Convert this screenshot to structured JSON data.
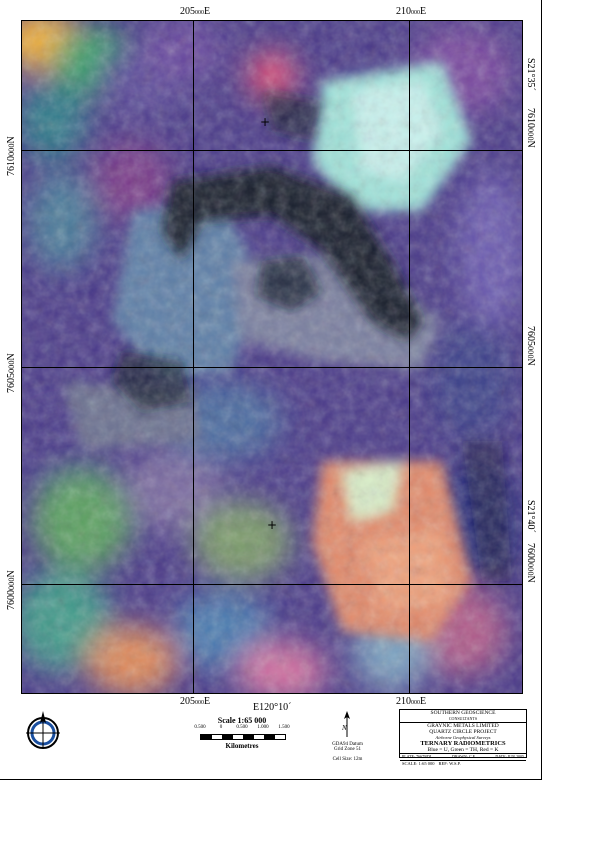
{
  "grid": {
    "easting_top": [
      {
        "main": "205",
        "small": "000",
        "suffix": "E"
      },
      {
        "main": "210",
        "small": "000",
        "suffix": "E"
      }
    ],
    "easting_bottom": [
      {
        "main": "205",
        "small": "000",
        "suffix": "E"
      },
      {
        "main": "210",
        "small": "000",
        "suffix": "E"
      }
    ],
    "northing_left": [
      {
        "main": "7610",
        "small": "000",
        "suffix": "N"
      },
      {
        "main": "7605",
        "small": "000",
        "suffix": "N"
      },
      {
        "main": "7600",
        "small": "000",
        "suffix": "N"
      }
    ],
    "northing_right": [
      {
        "main": "7610",
        "small": "000",
        "suffix": "N"
      },
      {
        "main": "7605",
        "small": "000",
        "suffix": "N"
      },
      {
        "main": "7600",
        "small": "000",
        "suffix": "N"
      }
    ],
    "latitude_labels": [
      "S21°35´",
      "S21°40´"
    ],
    "longitude_label": "E120°10´",
    "graticule_mark": "+"
  },
  "scale": {
    "title": "Scale 1:65 000",
    "ticks": [
      "0.500",
      "0",
      "0.500",
      "1.000",
      "1.500"
    ],
    "units": "Kilometres"
  },
  "north_arrow": {
    "label": "N"
  },
  "datum": {
    "line1": "GDA94 Datum",
    "line2": "Grid Zone 51",
    "cell_size": "Cell Size: 12m"
  },
  "title_block": {
    "consultant": "SOUTHERN GEOSCIENCE",
    "consultant_sub": "CONSULTANTS",
    "client": "GRAYNIC METALS LIMITED",
    "project": "QUARTZ CIRCLE PROJECT",
    "survey": "Airborne Geophysical Surveys",
    "product": "TERNARY RADIOMETRICS",
    "legend": "Blue = U, Green = TH, Red = K",
    "plate": "PLATE: 7667NDL",
    "drawn": "DRAWN: C.F.",
    "date": "DATE: JUN 2005",
    "scale": "SCALE: 1:65 000",
    "ref": "REF: W.S.P."
  },
  "colors": {
    "potassium_red": "#e8604a",
    "thorium_green": "#4fc38a",
    "uranium_blue": "#3d3f9e",
    "dark": "#141a2a",
    "cyan": "#b9f0ef"
  }
}
